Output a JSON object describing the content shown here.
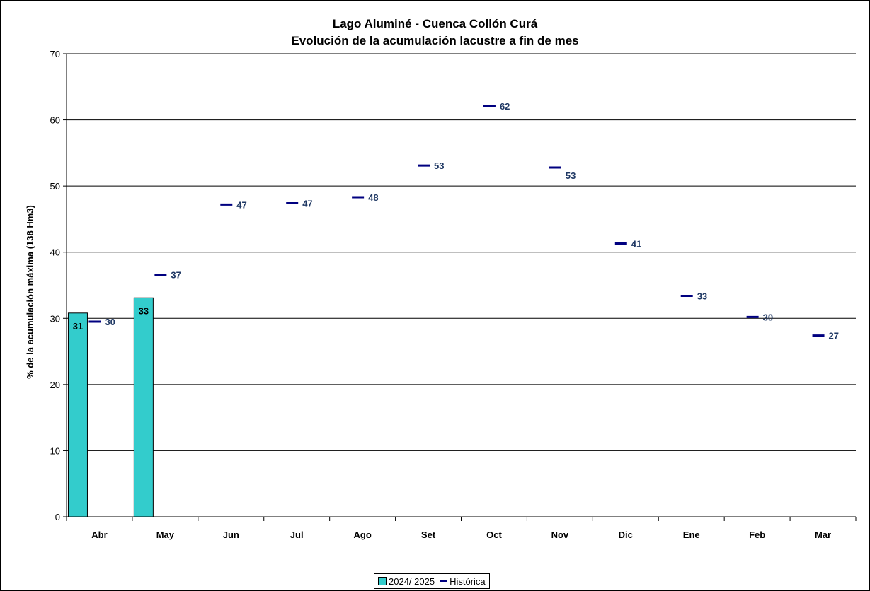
{
  "chart_data": {
    "type": "bar",
    "title": "Lago Aluminé - Cuenca Collón Curá",
    "subtitle": "Evolución de la acumulación lacustre a fin de mes",
    "xlabel": "",
    "ylabel": "% de la acumulación máxima (138 Hm3)",
    "ylim": [
      0,
      70
    ],
    "yticks": [
      0,
      10,
      20,
      30,
      40,
      50,
      60,
      70
    ],
    "grid": true,
    "legend_position": "bottom",
    "categories": [
      "Abr",
      "May",
      "Jun",
      "Jul",
      "Ago",
      "Set",
      "Oct",
      "Nov",
      "Dic",
      "Ene",
      "Feb",
      "Mar"
    ],
    "series": [
      {
        "name": "2024/ 2025",
        "type": "bar",
        "color": "#33cccc",
        "values": [
          30.8,
          33.1,
          null,
          null,
          null,
          null,
          null,
          null,
          null,
          null,
          null,
          null
        ],
        "labels": [
          "31",
          "33",
          "",
          "",
          "",
          "",
          "",
          "",
          "",
          "",
          "",
          ""
        ]
      },
      {
        "name": "Histórica",
        "type": "marker",
        "color": "#000080",
        "values": [
          29.5,
          36.6,
          47.2,
          47.4,
          48.3,
          53.1,
          62.1,
          52.8,
          41.3,
          33.4,
          30.2,
          27.4
        ],
        "labels": [
          "30",
          "37",
          "47",
          "47",
          "48",
          "53",
          "62",
          "53",
          "41",
          "33",
          "30",
          "27"
        ]
      }
    ]
  }
}
